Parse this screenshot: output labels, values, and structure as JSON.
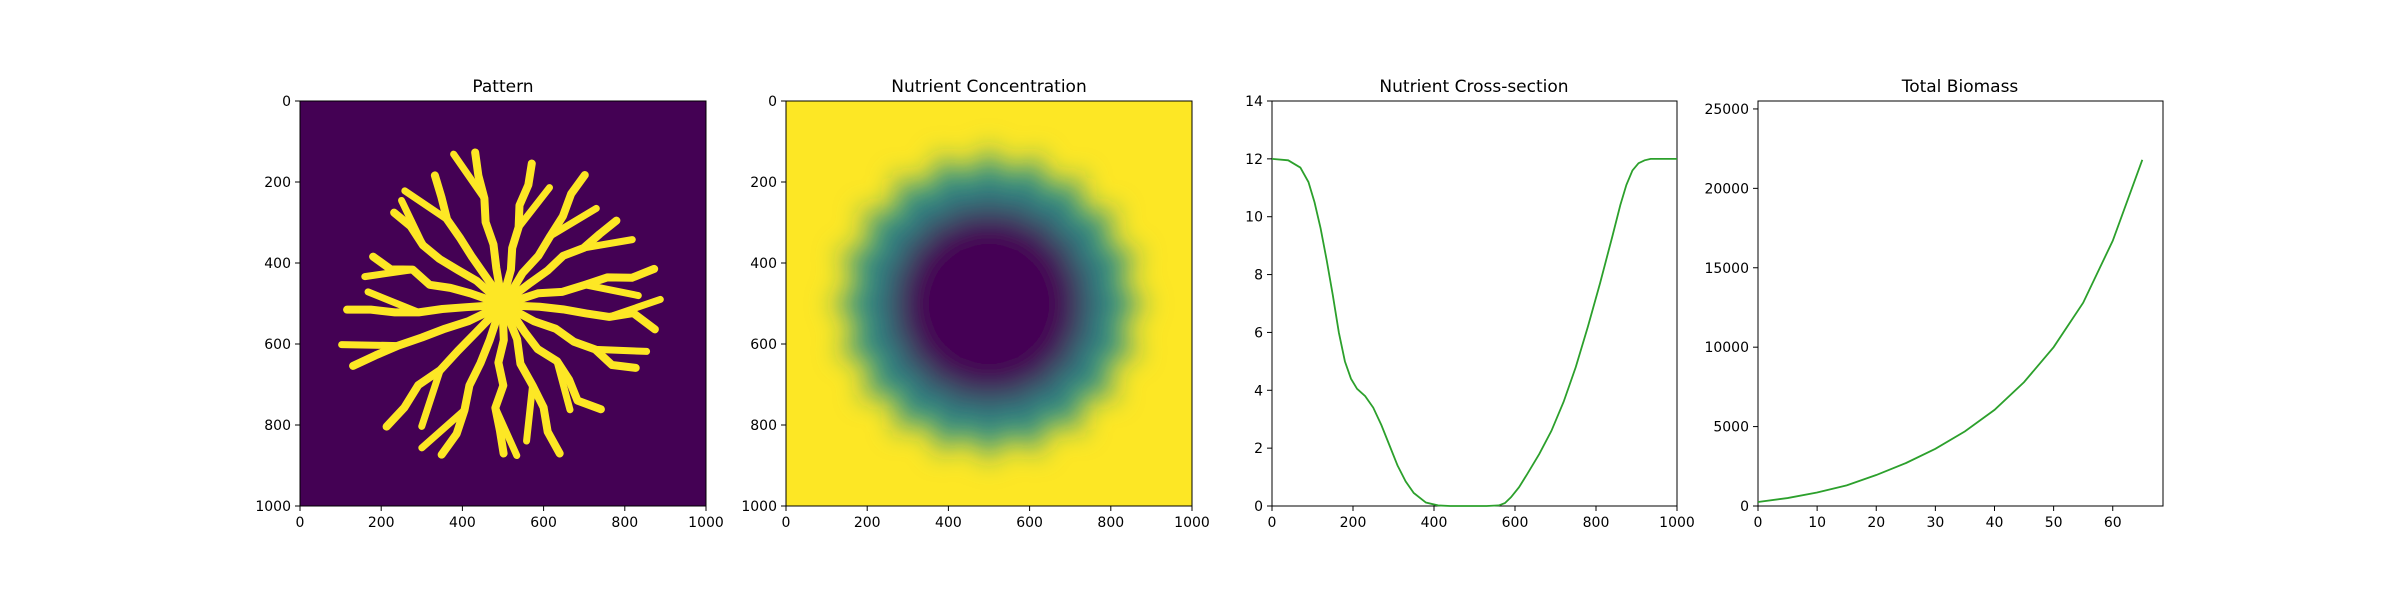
{
  "colors": {
    "background": "#ffffff",
    "axis": "#000000",
    "line": "#2ca02c",
    "viridis_low": "#440154",
    "viridis_mid": "#21918c",
    "viridis_high": "#fde725"
  },
  "chart_data": [
    {
      "type": "heatmap",
      "title": "Pattern",
      "colormap": "viridis",
      "xlim": [
        0,
        1000
      ],
      "ylim": [
        1000,
        0
      ],
      "x_ticks": [
        "0",
        "200",
        "400",
        "600",
        "800",
        "1000"
      ],
      "y_ticks": [
        "0",
        "200",
        "400",
        "600",
        "800",
        "1000"
      ],
      "description_values": {
        "center": [
          500,
          500
        ],
        "core_radius": 55,
        "branch_count": 17,
        "outer_radius": 400
      }
    },
    {
      "type": "heatmap",
      "title": "Nutrient Concentration",
      "colormap": "viridis",
      "xlim": [
        0,
        1000
      ],
      "ylim": [
        1000,
        0
      ],
      "x_ticks": [
        "0",
        "200",
        "400",
        "600",
        "800",
        "1000"
      ],
      "y_ticks": [
        "0",
        "200",
        "400",
        "600",
        "800",
        "1000"
      ],
      "description_values": {
        "center": [
          500,
          500
        ],
        "depleted_radius": 340,
        "star_points": 20
      }
    },
    {
      "type": "line",
      "title": "Nutrient Cross-section",
      "xlim": [
        0,
        1000
      ],
      "ylim": [
        0,
        14
      ],
      "x_ticks": [
        "0",
        "200",
        "400",
        "600",
        "800",
        "1000"
      ],
      "y_ticks": [
        "0",
        "2",
        "4",
        "6",
        "8",
        "10",
        "12",
        "14"
      ],
      "series": [
        {
          "x": [
            0,
            40,
            70,
            90,
            105,
            120,
            135,
            150,
            165,
            180,
            195,
            210,
            230,
            250,
            270,
            290,
            310,
            330,
            350,
            380,
            410,
            440,
            470,
            500,
            530,
            560,
            575,
            590,
            610,
            630,
            660,
            690,
            720,
            750,
            780,
            810,
            840,
            860,
            875,
            890,
            905,
            920,
            935,
            950,
            970,
            1000
          ],
          "y": [
            12.0,
            11.95,
            11.7,
            11.2,
            10.5,
            9.6,
            8.5,
            7.3,
            6.0,
            5.0,
            4.4,
            4.05,
            3.8,
            3.4,
            2.8,
            2.1,
            1.4,
            0.85,
            0.45,
            0.12,
            0.02,
            0.0,
            0.0,
            0.0,
            0.0,
            0.02,
            0.1,
            0.3,
            0.65,
            1.1,
            1.8,
            2.6,
            3.6,
            4.8,
            6.2,
            7.7,
            9.3,
            10.4,
            11.1,
            11.6,
            11.85,
            11.95,
            12.0,
            12.0,
            12.0,
            12.0
          ]
        }
      ]
    },
    {
      "type": "line",
      "title": "Total Biomass",
      "xlim": [
        0,
        68.5
      ],
      "ylim": [
        0,
        25500
      ],
      "x_ticks": [
        "0",
        "10",
        "20",
        "30",
        "40",
        "50",
        "60"
      ],
      "y_ticks": [
        "0",
        "5000",
        "10000",
        "15000",
        "20000",
        "25000"
      ],
      "series": [
        {
          "x": [
            0,
            5,
            10,
            15,
            20,
            25,
            30,
            35,
            40,
            45,
            50,
            55,
            60,
            65
          ],
          "y": [
            250,
            500,
            850,
            1300,
            1950,
            2700,
            3600,
            4700,
            6050,
            7800,
            10000,
            12800,
            16700,
            21800
          ]
        }
      ]
    }
  ]
}
